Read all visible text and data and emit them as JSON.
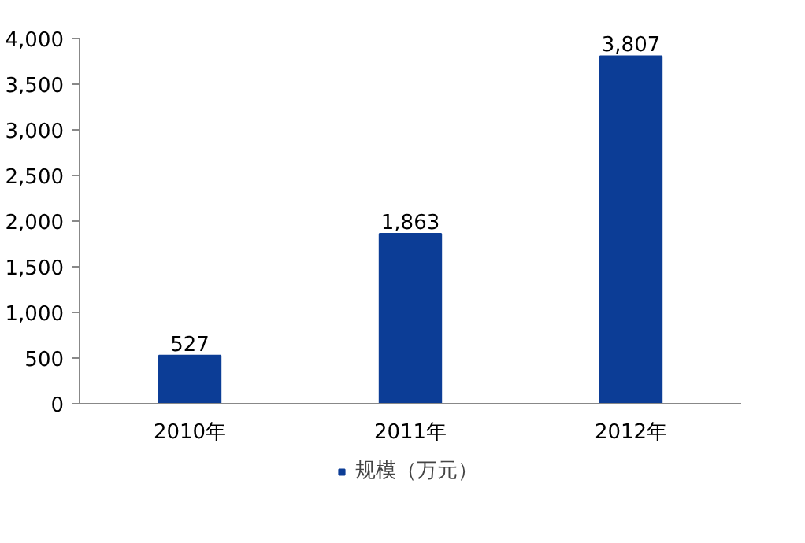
{
  "chart_data": {
    "type": "bar",
    "categories": [
      "2010年",
      "2011年",
      "2012年"
    ],
    "series": [
      {
        "name": "规模（万元）",
        "color": "#0c3d96",
        "values": [
          527,
          1863,
          3807
        ],
        "value_labels": [
          "527",
          "1,863",
          "3,807"
        ]
      }
    ],
    "ylim": [
      0,
      4000
    ],
    "yticks": [
      0,
      {
        "value": 500,
        "label": "500"
      },
      {
        "value": 1000,
        "label": "1,000"
      },
      {
        "value": 1500,
        "label": "1,500"
      },
      {
        "value": 2000,
        "label": "2,000"
      },
      {
        "value": 2500,
        "label": "2,500"
      },
      {
        "value": 3000,
        "label": "3,000"
      },
      {
        "value": 3500,
        "label": "3,500"
      },
      {
        "value": 4000,
        "label": "4,000"
      }
    ],
    "grid": false,
    "legend": "bottom"
  }
}
